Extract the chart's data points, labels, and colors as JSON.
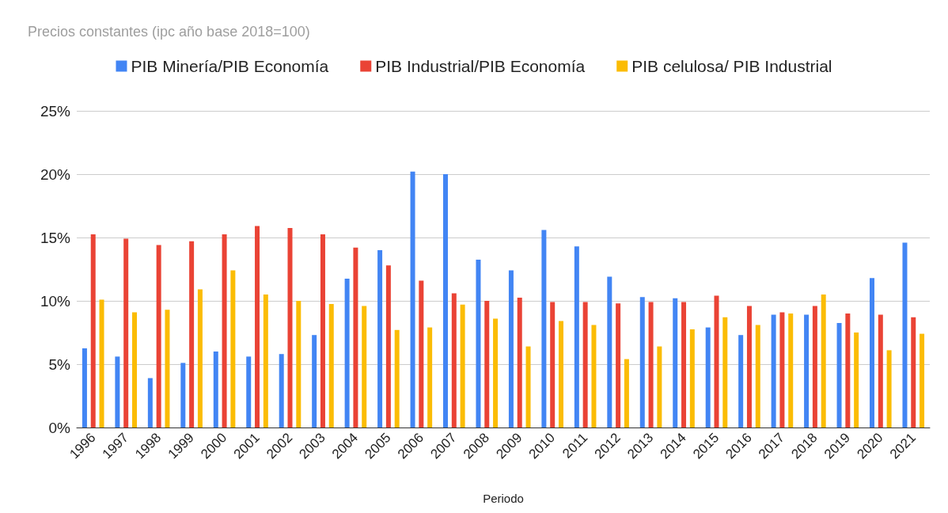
{
  "chart_data": {
    "type": "bar",
    "title": "Precios constantes (ipc año base 2018=100)",
    "xlabel": "Periodo",
    "categories": [
      "1996",
      "1997",
      "1998",
      "1999",
      "2000",
      "2001",
      "2002",
      "2003",
      "2004",
      "2005",
      "2006",
      "2007",
      "2008",
      "2009",
      "2010",
      "2011",
      "2012",
      "2013",
      "2014",
      "2015",
      "2016",
      "2017",
      "2018",
      "2019",
      "2020",
      "2021"
    ],
    "series": [
      {
        "name": "PIB Minería/PIB Economía",
        "color": "#4285f4",
        "values": [
          6.25,
          5.6,
          3.9,
          5.1,
          6.0,
          5.6,
          5.8,
          7.3,
          11.75,
          14.0,
          20.2,
          20.0,
          13.25,
          12.4,
          15.6,
          14.3,
          11.9,
          10.3,
          10.2,
          7.9,
          7.3,
          8.9,
          8.9,
          8.25,
          11.8,
          14.6
        ]
      },
      {
        "name": "PIB Industrial/PIB Economía",
        "color": "#ea4335",
        "values": [
          15.25,
          14.9,
          14.4,
          14.7,
          15.25,
          15.9,
          15.75,
          15.25,
          14.2,
          12.8,
          11.6,
          10.6,
          10.0,
          10.25,
          9.9,
          9.9,
          9.8,
          9.9,
          9.9,
          10.4,
          9.6,
          9.1,
          9.6,
          9.0,
          8.9,
          8.7
        ]
      },
      {
        "name": "PIB celulosa/ PIB Industrial",
        "color": "#fbbc04",
        "values": [
          10.1,
          9.1,
          9.3,
          10.9,
          12.4,
          10.5,
          10.0,
          9.75,
          9.6,
          7.7,
          7.9,
          9.7,
          8.6,
          6.4,
          8.4,
          8.1,
          5.4,
          6.4,
          7.75,
          8.7,
          8.1,
          9.0,
          10.5,
          7.5,
          6.1,
          7.4
        ]
      }
    ],
    "ylim": [
      0,
      25
    ],
    "yticks": [
      {
        "value": 0,
        "label": "0%"
      },
      {
        "value": 5,
        "label": "5%"
      },
      {
        "value": 10,
        "label": "10%"
      },
      {
        "value": 15,
        "label": "15%"
      },
      {
        "value": 20,
        "label": "20%"
      },
      {
        "value": 25,
        "label": "25%"
      }
    ],
    "grid": "y",
    "legend": "top"
  }
}
